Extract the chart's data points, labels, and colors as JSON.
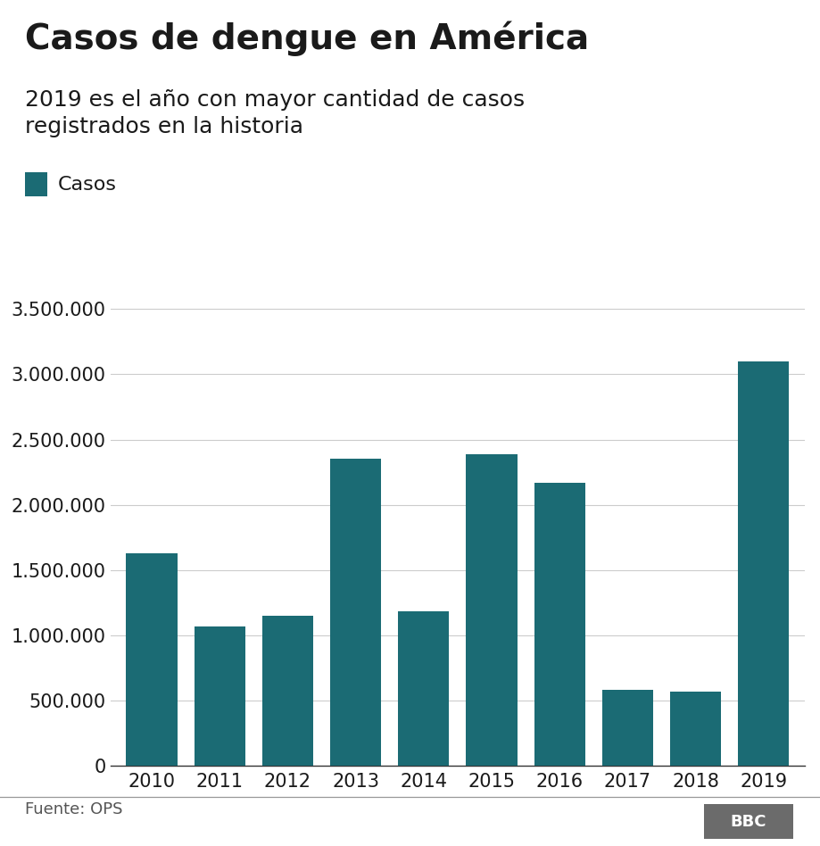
{
  "title": "Casos de dengue en América",
  "subtitle": "2019 es el año con mayor cantidad de casos\nregistrados en la historia",
  "legend_label": "Casos",
  "source": "Fuente: OPS",
  "years": [
    2010,
    2011,
    2012,
    2013,
    2014,
    2015,
    2016,
    2017,
    2018,
    2019
  ],
  "values": [
    1630000,
    1070000,
    1150000,
    2350000,
    1180000,
    2390000,
    2170000,
    580000,
    570000,
    3100000
  ],
  "bar_color": "#1b6b74",
  "background_color": "#ffffff",
  "title_fontsize": 28,
  "subtitle_fontsize": 18,
  "legend_fontsize": 16,
  "tick_fontsize": 15,
  "source_fontsize": 13,
  "ylim": [
    0,
    3600000
  ],
  "ytick_values": [
    0,
    500000,
    1000000,
    1500000,
    2000000,
    2500000,
    3000000,
    3500000
  ],
  "grid_color": "#cccccc",
  "axis_line_color": "#333333",
  "text_color": "#1a1a1a",
  "footer_line_color": "#999999"
}
